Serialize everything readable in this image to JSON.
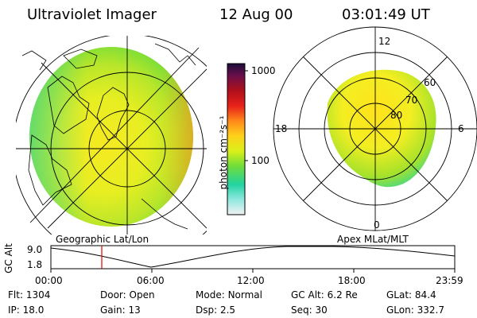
{
  "header": {
    "title": "Ultraviolet Imager",
    "date": "12 Aug 00",
    "time": "03:01:49 UT"
  },
  "colorbar": {
    "unit_label": "photon cm⁻²s⁻¹",
    "ticks": [
      "1000",
      "100"
    ]
  },
  "left_panel": {
    "caption": "Geographic Lat/Lon"
  },
  "right_panel": {
    "caption": "Apex MLat/MLT",
    "mlt_labels": [
      "12",
      "18",
      "6",
      "0"
    ],
    "lat_labels": [
      "60",
      "70",
      "80"
    ]
  },
  "altitude_strip": {
    "axis_label": "GC Alt",
    "y_ticks": [
      "9.0",
      "1.8"
    ],
    "x_ticks": [
      "00:00",
      "06:00",
      "12:00",
      "18:00",
      "23:59"
    ],
    "current_time_fraction": 0.126
  },
  "info": {
    "row1": [
      {
        "key": "Flt:",
        "value": "1304"
      },
      {
        "key": "Door:",
        "value": "Open"
      },
      {
        "key": "Mode:",
        "value": "Normal"
      },
      {
        "key": "GC Alt:",
        "value": "6.2 Re"
      },
      {
        "key": "GLat:",
        "value": "84.4"
      }
    ],
    "row2": [
      {
        "key": "IP:",
        "value": "18.0"
      },
      {
        "key": "Gain:",
        "value": "13"
      },
      {
        "key": "Dsp:",
        "value": "2.5"
      },
      {
        "key": "Seq:",
        "value": "30"
      },
      {
        "key": "GLon:",
        "value": "332.7"
      }
    ]
  },
  "colors": {
    "colorbar_stops": [
      "#f2f2f2",
      "#8fe8e0",
      "#22d3a0",
      "#6fdc3a",
      "#d9f01a",
      "#ffd21a",
      "#ff8a1a",
      "#e8201a",
      "#b0101a",
      "#6a0f4a",
      "#1a0d3a"
    ],
    "current_time_marker": "#e00000"
  }
}
